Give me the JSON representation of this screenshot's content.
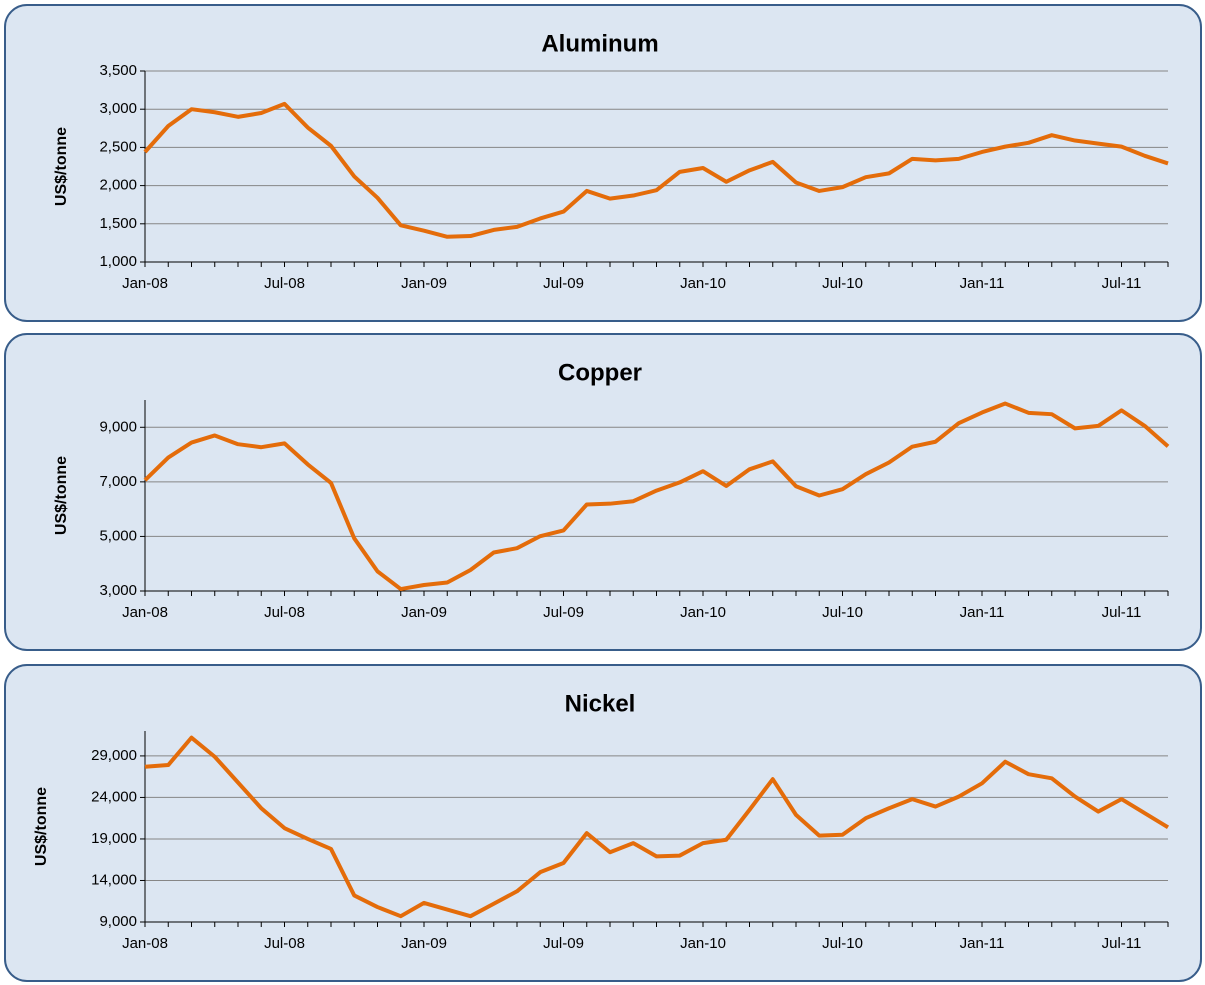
{
  "chart_data": [
    {
      "type": "line",
      "title": "Aluminum",
      "y_label": "US$/tonne",
      "categories": [
        "Jan-08",
        null,
        null,
        null,
        null,
        null,
        "Jul-08",
        null,
        null,
        null,
        null,
        null,
        "Jan-09",
        null,
        null,
        null,
        null,
        null,
        "Jul-09",
        null,
        null,
        null,
        null,
        null,
        "Jan-10",
        null,
        null,
        null,
        null,
        null,
        "Jul-10",
        null,
        null,
        null,
        null,
        null,
        "Jan-11",
        null,
        null,
        null,
        null,
        null,
        "Jul-11",
        null,
        null
      ],
      "series": [
        {
          "color": "#e46c0a",
          "values": [
            2440,
            2780,
            3000,
            2960,
            2900,
            2950,
            3070,
            2760,
            2520,
            2120,
            1840,
            1480,
            1410,
            1330,
            1340,
            1420,
            1460,
            1570,
            1660,
            1930,
            1830,
            1870,
            1940,
            2180,
            2230,
            2050,
            2200,
            2310,
            2040,
            1930,
            1980,
            2110,
            2160,
            2350,
            2330,
            2350,
            2440,
            2510,
            2560,
            2660,
            2590,
            2550,
            2510,
            2390,
            2290
          ]
        }
      ],
      "ylim": [
        1000,
        3500
      ],
      "yticks": [
        {
          "value": 1000,
          "label": "1,000"
        },
        {
          "value": 1500,
          "label": "1,500"
        },
        {
          "value": 2000,
          "label": "2,000"
        },
        {
          "value": 2500,
          "label": "2,500"
        },
        {
          "value": 3000,
          "label": "3,000"
        },
        {
          "value": 3500,
          "label": "3,500"
        }
      ],
      "grid": true
    },
    {
      "type": "line",
      "title": "Copper",
      "y_label": "US$/tonne",
      "categories": [
        "Jan-08",
        null,
        null,
        null,
        null,
        null,
        "Jul-08",
        null,
        null,
        null,
        null,
        null,
        "Jan-09",
        null,
        null,
        null,
        null,
        null,
        "Jul-09",
        null,
        null,
        null,
        null,
        null,
        "Jan-10",
        null,
        null,
        null,
        null,
        null,
        "Jul-10",
        null,
        null,
        null,
        null,
        null,
        "Jan-11",
        null,
        null,
        null,
        null,
        null,
        "Jul-11",
        null,
        null
      ],
      "series": [
        {
          "color": "#e46c0a",
          "values": [
            7060,
            7890,
            8440,
            8700,
            8380,
            8270,
            8410,
            7640,
            6960,
            4930,
            3720,
            3070,
            3220,
            3310,
            3770,
            4410,
            4570,
            5010,
            5220,
            6170,
            6200,
            6290,
            6680,
            6980,
            7390,
            6850,
            7460,
            7750,
            6840,
            6500,
            6730,
            7280,
            7710,
            8290,
            8470,
            9150,
            9540,
            9870,
            9530,
            9480,
            8960,
            9050,
            9620,
            9050,
            8300
          ]
        }
      ],
      "ylim": [
        3000,
        10000
      ],
      "yticks": [
        {
          "value": 3000,
          "label": "3,000"
        },
        {
          "value": 5000,
          "label": "5,000"
        },
        {
          "value": 7000,
          "label": "7,000"
        },
        {
          "value": 9000,
          "label": "9,000"
        }
      ],
      "grid": true
    },
    {
      "type": "line",
      "title": "Nickel",
      "y_label": "US$/tonne",
      "categories": [
        "Jan-08",
        null,
        null,
        null,
        null,
        null,
        "Jul-08",
        null,
        null,
        null,
        null,
        null,
        "Jan-09",
        null,
        null,
        null,
        null,
        null,
        "Jul-09",
        null,
        null,
        null,
        null,
        null,
        "Jan-10",
        null,
        null,
        null,
        null,
        null,
        "Jul-10",
        null,
        null,
        null,
        null,
        null,
        "Jan-11",
        null,
        null,
        null,
        null,
        null,
        "Jul-11",
        null,
        null
      ],
      "series": [
        {
          "color": "#e46c0a",
          "values": [
            27700,
            27900,
            31200,
            28900,
            25800,
            22700,
            20300,
            19000,
            17800,
            12200,
            10800,
            9700,
            11300,
            10500,
            9700,
            11200,
            12700,
            15000,
            16100,
            19700,
            17400,
            18500,
            16900,
            17000,
            18500,
            18900,
            22500,
            26200,
            21900,
            19400,
            19500,
            21500,
            22700,
            23800,
            22900,
            24100,
            25700,
            28300,
            26800,
            26300,
            24100,
            22300,
            23800,
            22100,
            20400
          ]
        }
      ],
      "ylim": [
        9000,
        32000
      ],
      "yticks": [
        {
          "value": 9000,
          "label": "9,000"
        },
        {
          "value": 14000,
          "label": "14,000"
        },
        {
          "value": 19000,
          "label": "19,000"
        },
        {
          "value": 24000,
          "label": "24,000"
        },
        {
          "value": 29000,
          "label": "29,000"
        }
      ],
      "grid": true
    }
  ]
}
